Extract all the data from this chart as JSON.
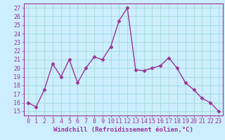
{
  "x": [
    0,
    1,
    2,
    3,
    4,
    5,
    6,
    7,
    8,
    9,
    10,
    11,
    12,
    13,
    14,
    15,
    16,
    17,
    18,
    19,
    20,
    21,
    22,
    23
  ],
  "y": [
    16,
    15.5,
    17.5,
    20.5,
    19,
    21,
    18.3,
    20,
    21.3,
    21,
    22.5,
    25.5,
    27,
    19.8,
    19.7,
    20,
    20.3,
    21.2,
    20,
    18.3,
    17.5,
    16.5,
    16,
    15
  ],
  "line_color": "#993399",
  "marker": "D",
  "markersize": 2.5,
  "linewidth": 1.0,
  "bg_color": "#cceeff",
  "grid_color": "#aadddd",
  "xlabel": "Windchill (Refroidissement éolien,°C)",
  "xlabel_fontsize": 6.5,
  "tick_fontsize": 6.0,
  "ylim": [
    14.5,
    27.5
  ],
  "xlim": [
    -0.5,
    23.5
  ],
  "yticks": [
    15,
    16,
    17,
    18,
    19,
    20,
    21,
    22,
    23,
    24,
    25,
    26,
    27
  ],
  "xticks": [
    0,
    1,
    2,
    3,
    4,
    5,
    6,
    7,
    8,
    9,
    10,
    11,
    12,
    13,
    14,
    15,
    16,
    17,
    18,
    19,
    20,
    21,
    22,
    23
  ]
}
